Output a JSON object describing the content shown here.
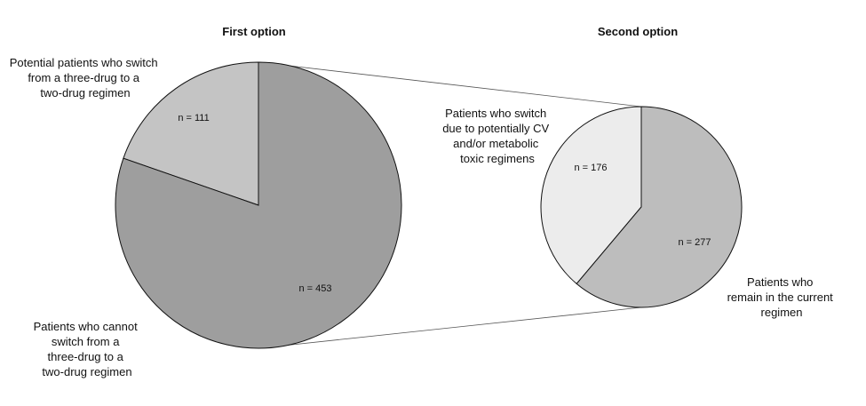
{
  "chart_data": {
    "type": "pie",
    "charts": [
      {
        "id": "first",
        "title": "First option",
        "slices": [
          {
            "label": "n = 111",
            "value": 111,
            "color": "#c4c4c4",
            "annotation": [
              "Potential patients who switch",
              "from a three-drug to a",
              "two-drug regimen"
            ]
          },
          {
            "label": "n = 453",
            "value": 453,
            "color": "#9e9e9e",
            "annotation": [
              "Patients who cannot",
              "switch from a",
              "three-drug to a",
              "two-drug regimen"
            ]
          }
        ]
      },
      {
        "id": "second",
        "title": "Second option",
        "slices": [
          {
            "label": "n = 176",
            "value": 176,
            "color": "#ececec",
            "annotation": [
              "Patients who switch",
              "due to potentially CV",
              "and/or metabolic",
              "toxic regimens"
            ]
          },
          {
            "label": "n = 277",
            "value": 277,
            "color": "#bdbdbd",
            "annotation": [
              "Patients who",
              "remain in the current",
              "regimen"
            ]
          }
        ]
      }
    ]
  }
}
